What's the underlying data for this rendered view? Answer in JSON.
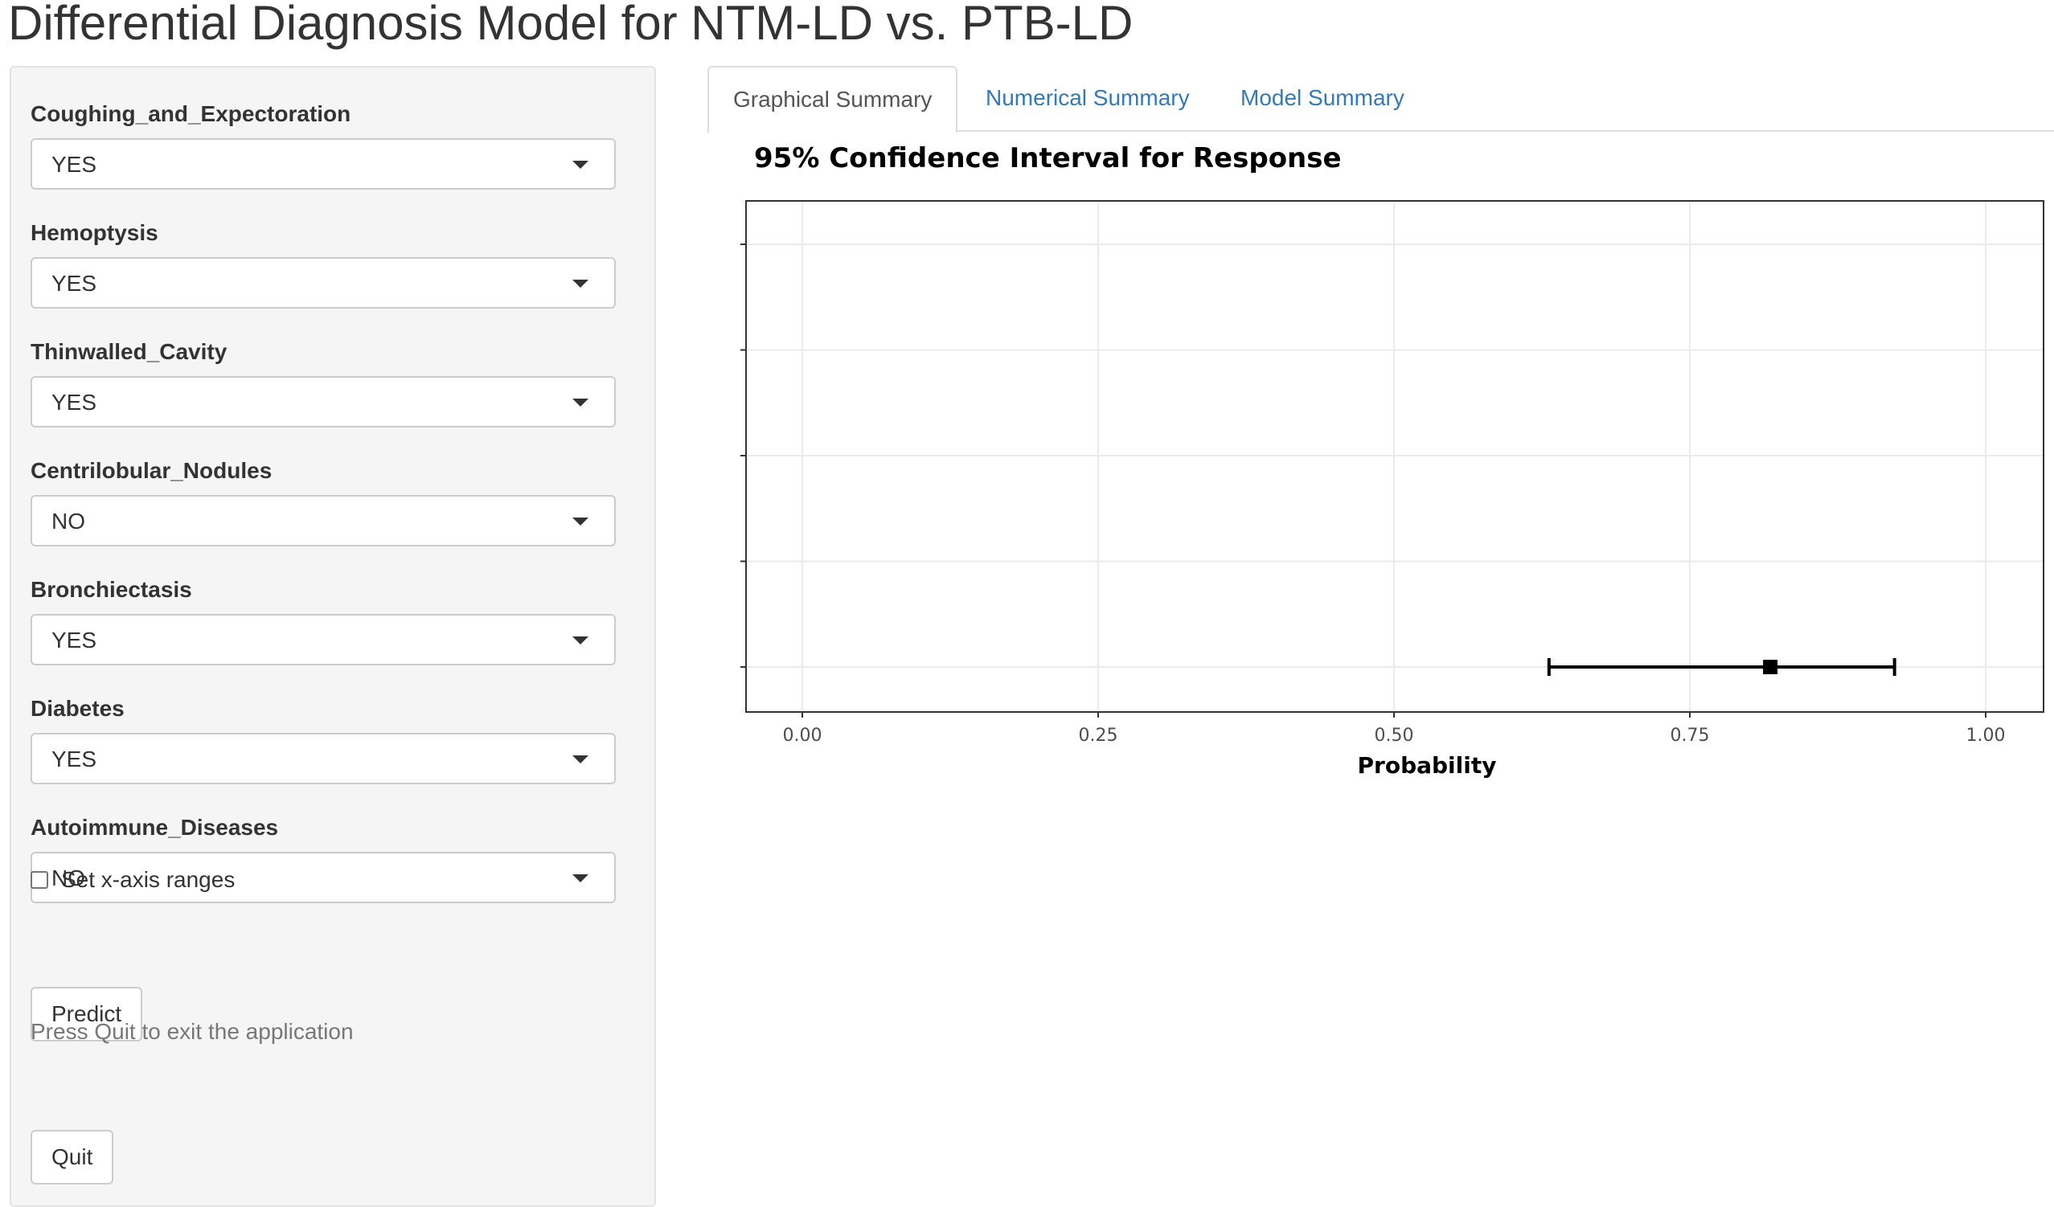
{
  "app": {
    "title": "Differential Diagnosis Model for NTM-LD vs. PTB-LD"
  },
  "sidebar": {
    "fields": [
      {
        "label": "Coughing_and_Expectoration",
        "value": "YES"
      },
      {
        "label": "Hemoptysis",
        "value": "YES"
      },
      {
        "label": "Thinwalled_Cavity",
        "value": "YES"
      },
      {
        "label": "Centrilobular_Nodules",
        "value": "NO"
      },
      {
        "label": "Bronchiectasis",
        "value": "YES"
      },
      {
        "label": "Diabetes",
        "value": "YES"
      },
      {
        "label": "Autoimmune_Diseases",
        "value": "NO"
      }
    ],
    "checkbox": {
      "label": "Set x-axis ranges",
      "checked": false
    },
    "predict_label": "Predict",
    "quit_hint": "Press Quit to exit the application",
    "quit_label": "Quit"
  },
  "tabs": [
    {
      "label": "Graphical Summary",
      "active": true
    },
    {
      "label": "Numerical Summary",
      "active": false
    },
    {
      "label": "Model Summary",
      "active": false
    }
  ],
  "chart_data": {
    "type": "scatter",
    "title": "95% Confidence Interval for Response",
    "xlabel": "Probability",
    "ylabel": "",
    "xlim": [
      -0.05,
      1.0
    ],
    "x_ticks": [
      "0.00",
      "0.25",
      "0.50",
      "0.75",
      "1.00"
    ],
    "x_tick_values": [
      0,
      0.25,
      0.5,
      0.75,
      1.0
    ],
    "y_tick_count": 5,
    "grid": true,
    "points": [
      {
        "y_index": 0,
        "estimate": 0.818,
        "lower": 0.631,
        "upper": 0.923
      }
    ],
    "colors": {
      "point": "#000000",
      "grid": "#ebebeb",
      "border": "#333333"
    }
  }
}
